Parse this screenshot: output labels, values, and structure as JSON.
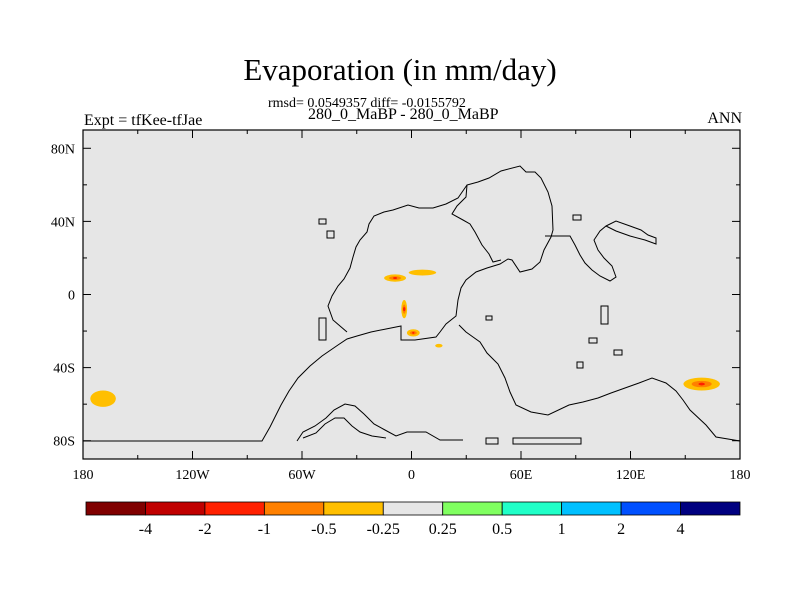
{
  "title": "Evaporation (in mm/day)",
  "stats": "rmsd= 0.0549357 diff= -0.0155792",
  "expt_name": "280_0_MaBP - 280_0_MaBP",
  "left_label": "Expt = tfKee-tfJae",
  "right_label": "ANN",
  "colors": {
    "background": "#e6e6e6",
    "coast": "#000000",
    "anomaly_outer": "#ffbf00",
    "anomaly_mid": "#ff8000",
    "anomaly_core": "#ff2000"
  },
  "chart_data": {
    "type": "heatmap",
    "projection": "cylindrical-equidistant",
    "xlim": [
      -180,
      180
    ],
    "ylim": [
      -90,
      90
    ],
    "x_ticks": [
      {
        "value": -180,
        "label": "180"
      },
      {
        "value": -120,
        "label": "120W"
      },
      {
        "value": -60,
        "label": "60W"
      },
      {
        "value": 0,
        "label": "0"
      },
      {
        "value": 60,
        "label": "60E"
      },
      {
        "value": 120,
        "label": "120E"
      },
      {
        "value": 180,
        "label": "180"
      }
    ],
    "y_ticks": [
      {
        "value": 80,
        "label": "80N"
      },
      {
        "value": 40,
        "label": "40N"
      },
      {
        "value": 0,
        "label": "0"
      },
      {
        "value": -40,
        "label": "40S"
      },
      {
        "value": -80,
        "label": "80S"
      }
    ],
    "colorbar": {
      "colors": [
        "#800000",
        "#c00000",
        "#ff2000",
        "#ff8000",
        "#ffbf00",
        "#e6e6e6",
        "#80ff60",
        "#20ffc8",
        "#00c0ff",
        "#0050ff",
        "#000080"
      ],
      "levels": [
        -4,
        -2,
        -1,
        -0.5,
        -0.25,
        0.25,
        0.5,
        1,
        2,
        4
      ],
      "labels": [
        "-4",
        "-2",
        "-1",
        "-0.5",
        "-0.25",
        "0.25",
        "0.5",
        "1",
        "2",
        "4"
      ]
    },
    "anomalies": [
      {
        "lon": -169,
        "lat": -57,
        "rlon": 7,
        "rlat": 4.5,
        "value": -0.3
      },
      {
        "lon": -9,
        "lat": 9,
        "rlon": 6,
        "rlat": 2,
        "value": -0.6
      },
      {
        "lon": 6,
        "lat": 12,
        "rlon": 7.5,
        "rlat": 1.6,
        "value": -0.4
      },
      {
        "lon": -4,
        "lat": -8,
        "rlon": 1.6,
        "rlat": 5,
        "value": -0.6
      },
      {
        "lon": 1,
        "lat": -21,
        "rlon": 3.5,
        "rlat": 2,
        "value": -0.6
      },
      {
        "lon": 15,
        "lat": -28,
        "rlon": 2,
        "rlat": 1,
        "value": -0.3
      },
      {
        "lon": 159,
        "lat": -49,
        "rlon": 10,
        "rlat": 3.5,
        "value": -0.6
      }
    ]
  }
}
